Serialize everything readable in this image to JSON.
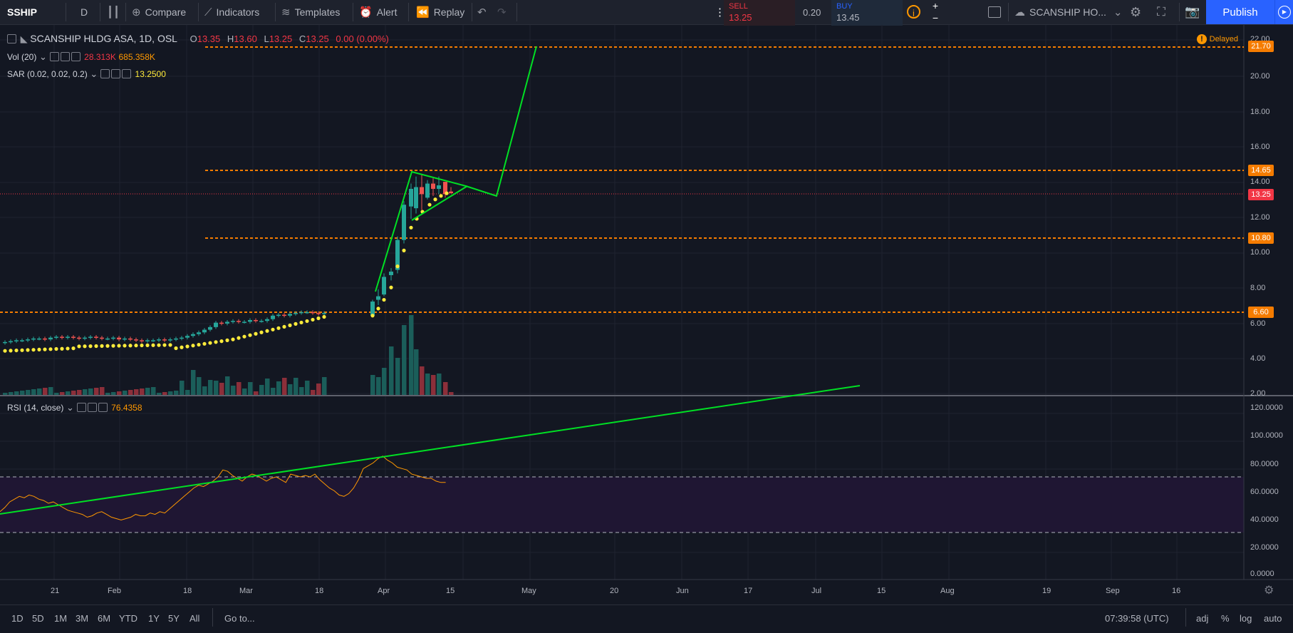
{
  "toolbar": {
    "symbol": "SSHIP",
    "interval": "D",
    "compare": "Compare",
    "indicators": "Indicators",
    "templates": "Templates",
    "alert": "Alert",
    "replay": "Replay",
    "sell_label": "SELL",
    "sell_price": "13.25",
    "spread": "0.20",
    "buy_label": "BUY",
    "buy_price": "13.45",
    "layout_name": "SCANSHIP HO...",
    "publish": "Publish"
  },
  "legend": {
    "title": "SCANSHIP HLDG ASA, 1D, OSL",
    "o_label": "O",
    "o": "13.35",
    "h_label": "H",
    "h": "13.60",
    "l_label": "L",
    "l": "13.25",
    "c_label": "C",
    "c": "13.25",
    "change": "0.00 (0.00%)",
    "vol_name": "Vol (20)",
    "vol_val1": "28.313K",
    "vol_val2": "685.358K",
    "sar_name": "SAR (0.02, 0.02, 0.2)",
    "sar_val": "13.2500",
    "rsi_name": "RSI (14, close)",
    "rsi_val": "76.4358",
    "delayed": "Delayed"
  },
  "price_axis": [
    "22.00",
    "20.00",
    "18.00",
    "16.00",
    "14.00",
    "12.00",
    "10.00",
    "8.00",
    "6.00",
    "4.00",
    "2.00"
  ],
  "rsi_axis": [
    "120.0000",
    "100.0000",
    "80.0000",
    "60.0000",
    "40.0000",
    "20.0000",
    "0.0000"
  ],
  "price_tags": [
    {
      "label": "21.70",
      "color": "#f57c00"
    },
    {
      "label": "14.65",
      "color": "#f57c00"
    },
    {
      "label": "13.25",
      "color": "#f23645"
    },
    {
      "label": "10.80",
      "color": "#f57c00"
    },
    {
      "label": "6.60",
      "color": "#f57c00"
    }
  ],
  "time_axis": [
    "21",
    "Feb",
    "18",
    "Mar",
    "18",
    "Apr",
    "15",
    "May",
    "20",
    "Jun",
    "17",
    "Jul",
    "15",
    "Aug",
    "19",
    "Sep",
    "16"
  ],
  "bottom": {
    "ranges": [
      "1D",
      "5D",
      "1M",
      "3M",
      "6M",
      "YTD",
      "1Y",
      "5Y",
      "All"
    ],
    "goto": "Go to...",
    "clock": "07:39:58 (UTC)",
    "adj": "adj",
    "pct": "%",
    "log": "log",
    "auto": "auto"
  },
  "colors": {
    "bg": "#131722",
    "up": "#26a69a",
    "down": "#ef5350",
    "accent": "#2962ff",
    "level": "#f57c00",
    "draw": "#00e024",
    "sar": "#ffeb3b",
    "rsi": "#ff9800"
  }
}
